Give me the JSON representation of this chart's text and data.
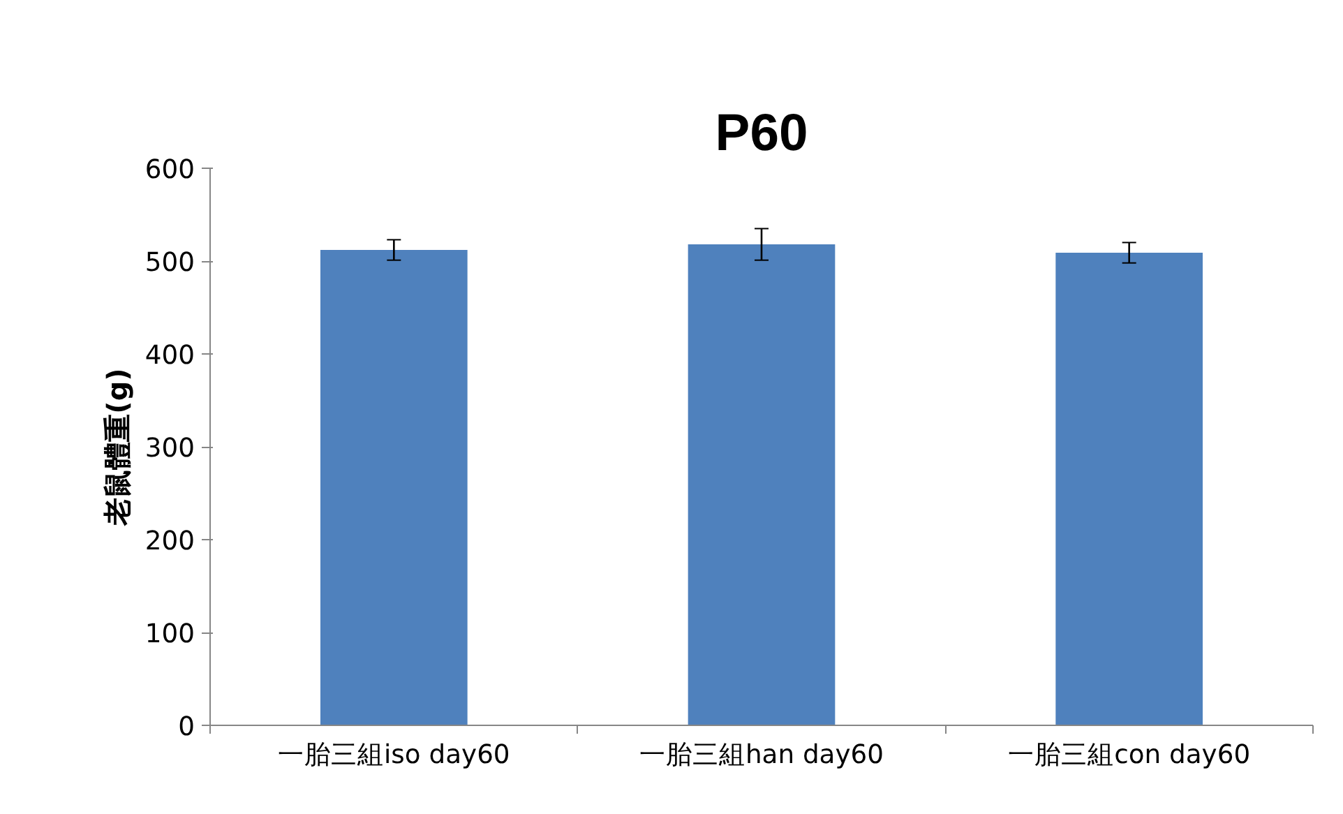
{
  "chart_data": {
    "type": "bar",
    "title": "P60",
    "ylabel": "老鼠體重(g)",
    "categories": [
      "一胎三組iso day60",
      "一胎三組han day60",
      "一胎三組con day60"
    ],
    "values": [
      512,
      518,
      509
    ],
    "errors": [
      11,
      17,
      11
    ],
    "color": "#4f81bd",
    "ylim": [
      0,
      600
    ],
    "yticks": [
      0,
      100,
      200,
      300,
      400,
      500,
      600
    ],
    "grid": false
  }
}
